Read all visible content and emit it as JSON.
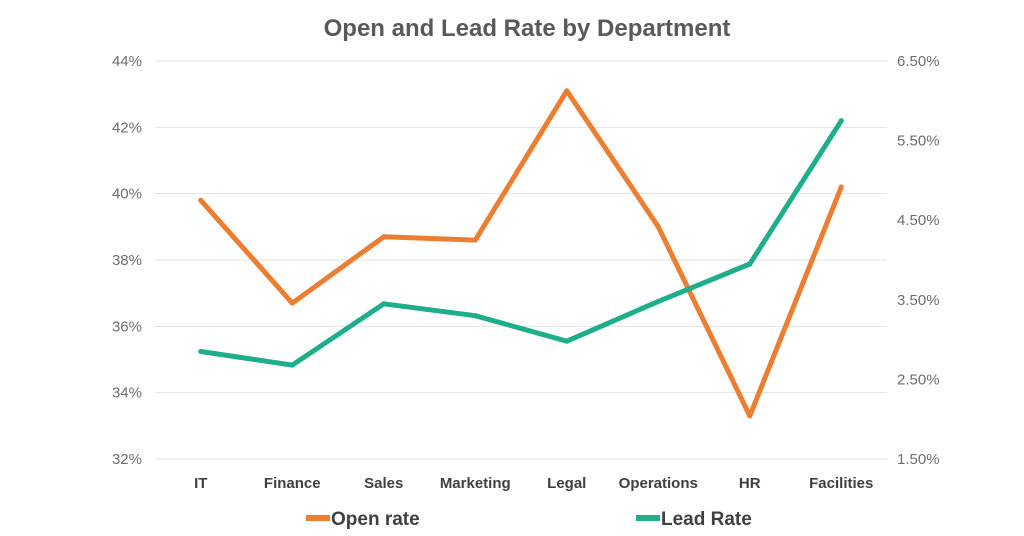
{
  "chart_data": {
    "type": "line",
    "title": "Open and Lead Rate by Department",
    "categories": [
      "IT",
      "Finance",
      "Sales",
      "Marketing",
      "Legal",
      "Operations",
      "HR",
      "Facilities"
    ],
    "y_left": {
      "min": 32,
      "max": 44,
      "step": 2,
      "tick_labels": [
        "32%",
        "34%",
        "36%",
        "38%",
        "40%",
        "42%",
        "44%"
      ]
    },
    "y_right": {
      "min": 1.5,
      "max": 6.5,
      "step": 1,
      "tick_labels": [
        "1.50%",
        "2.50%",
        "3.50%",
        "4.50%",
        "5.50%",
        "6.50%"
      ]
    },
    "grid": true,
    "legend_position": "bottom",
    "series": [
      {
        "name": "Open rate",
        "axis": "left",
        "color": "#ED7D31",
        "values": [
          39.8,
          36.7,
          38.7,
          38.6,
          43.1,
          39.0,
          33.3,
          40.2
        ]
      },
      {
        "name": "Lead Rate",
        "axis": "right",
        "color": "#1FAE8C",
        "values": [
          2.85,
          2.68,
          3.45,
          3.3,
          2.98,
          3.48,
          3.95,
          5.75
        ]
      }
    ]
  }
}
